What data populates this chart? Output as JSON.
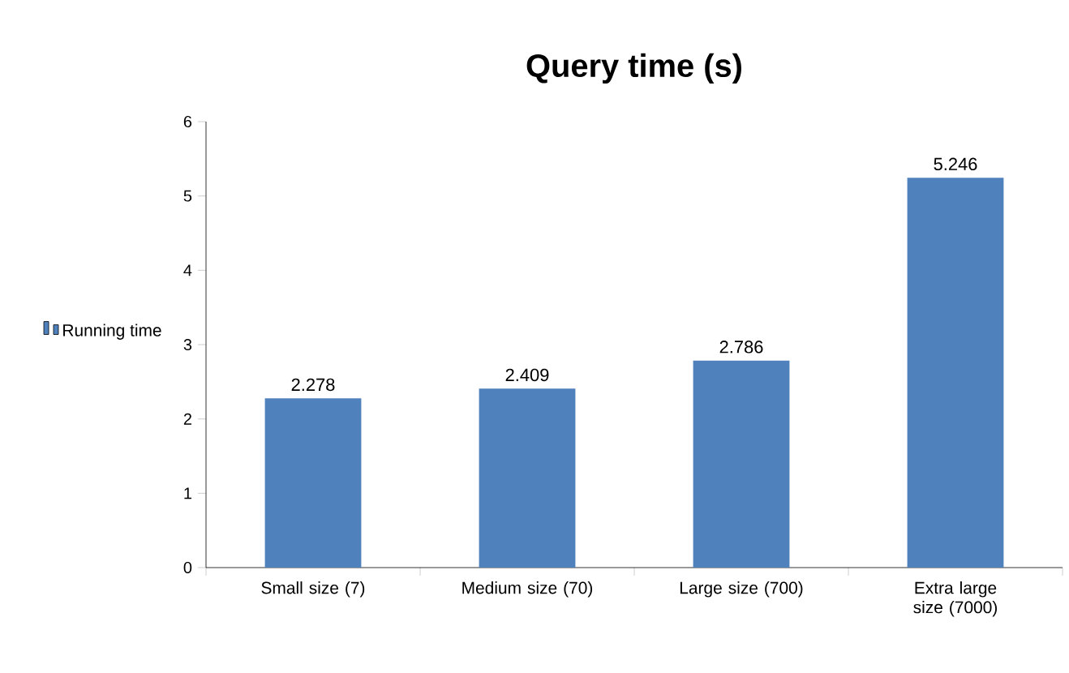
{
  "chart_data": {
    "type": "bar",
    "title": "Query time (s)",
    "categories": [
      "Small size (7)",
      "Medium size (70)",
      "Large size (700)",
      "Extra large size (7000)"
    ],
    "series": [
      {
        "name": "Running time",
        "color": "#4f81bd",
        "values": [
          2.278,
          2.409,
          2.786,
          5.246
        ]
      }
    ],
    "ylim": [
      0,
      6
    ],
    "yticks": [
      0,
      1,
      2,
      3,
      4,
      5,
      6
    ],
    "grid": false,
    "legend": "left",
    "data_labels": true
  }
}
